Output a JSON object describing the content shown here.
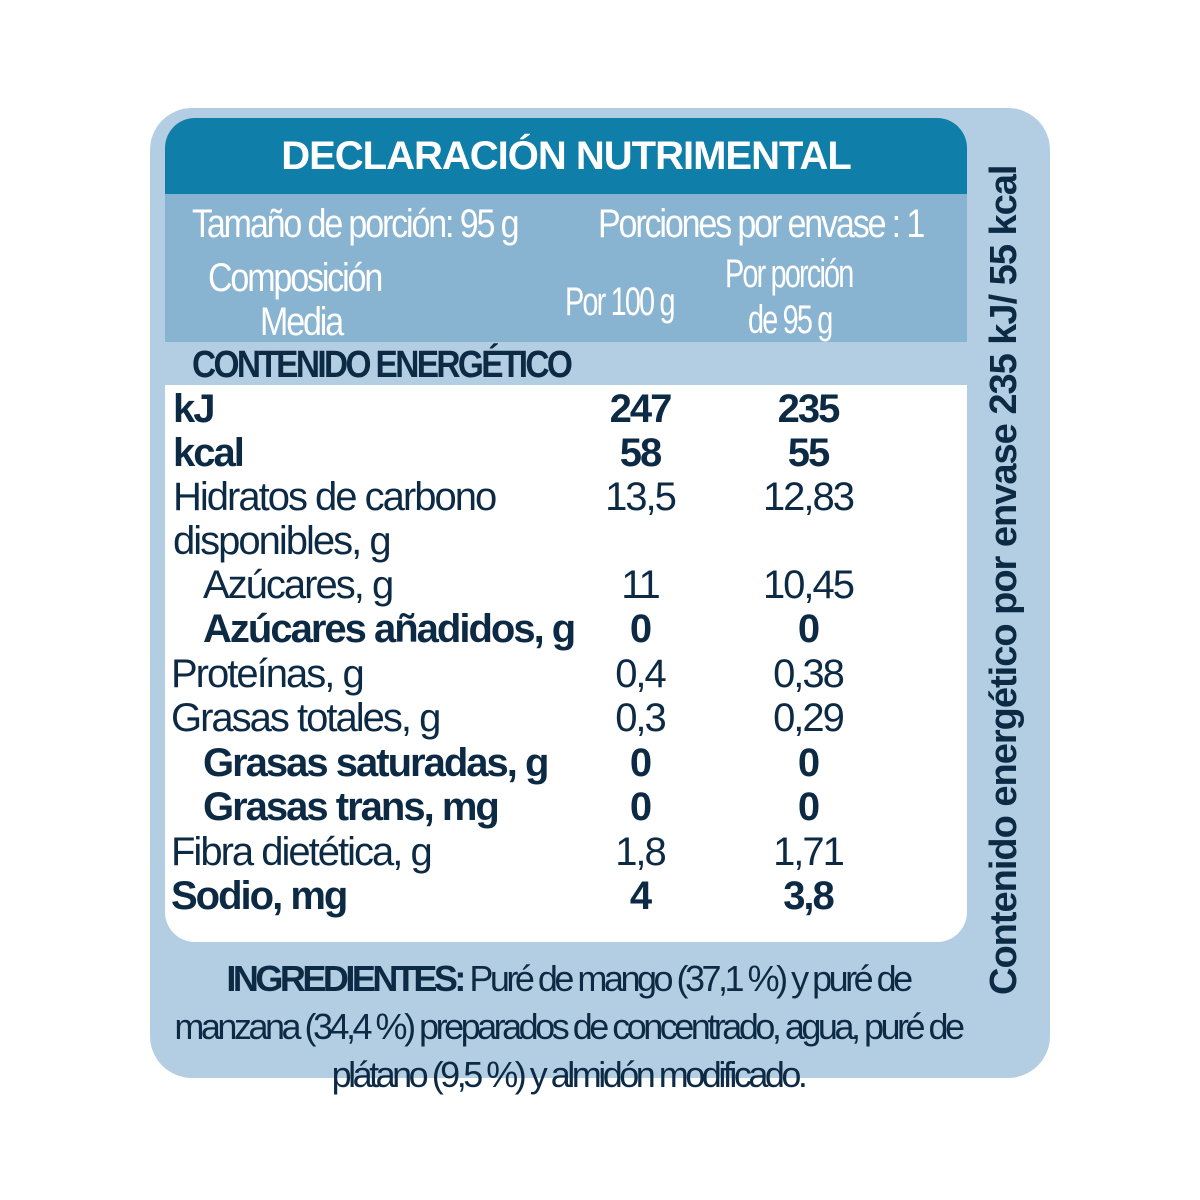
{
  "title": "DECLARACIÓN NUTRIMENTAL",
  "serving_size": "Tamaño de porción:  95 g",
  "servings_per_container": "Porciones por envase : 1",
  "col_header": {
    "composition_1": "Composición",
    "composition_2": "Media",
    "per100": "Por 100 g",
    "perportion_1": "Por porción",
    "perportion_2": "de 95 g"
  },
  "energy_heading": "CONTENIDO ENERGÉTICO",
  "rows": [
    {
      "label": "kJ",
      "per100": "247",
      "portion": "235"
    },
    {
      "label": "kcal",
      "per100": "58",
      "portion": "55"
    },
    {
      "label": "Hidratos de carbono",
      "per100": "13,5",
      "portion": "12,83"
    },
    {
      "label": "disponibles, g",
      "per100": "",
      "portion": ""
    },
    {
      "label": "Azúcares, g",
      "per100": "11",
      "portion": "10,45"
    },
    {
      "label": "Azúcares añadidos, g",
      "per100": "0",
      "portion": "0"
    },
    {
      "label": "Proteínas, g",
      "per100": "0,4",
      "portion": "0,38"
    },
    {
      "label": "Grasas totales, g",
      "per100": "0,3",
      "portion": "0,29"
    },
    {
      "label": "Grasas saturadas, g",
      "per100": "0",
      "portion": "0"
    },
    {
      "label": "Grasas trans, mg",
      "per100": "0",
      "portion": "0"
    },
    {
      "label": "Fibra dietética, g",
      "per100": "1,8",
      "portion": "1,71"
    },
    {
      "label": "Sodio, mg",
      "per100": "4",
      "portion": "3,8"
    }
  ],
  "ingredients": {
    "label": "INGREDIENTES:",
    "text": " Puré de mango (37,1 %) y puré de manzana (34,4 %) preparados de concentrado, agua, puré de plátano (9,5 %) y almidón modificado."
  },
  "side_text": "Contenido energético por envase  235 kJ/ 55 kcal",
  "colors": {
    "outer": "#b3cee2",
    "header": "#0f7ea8",
    "band": "#89b4d1",
    "text": "#0d2a45"
  }
}
